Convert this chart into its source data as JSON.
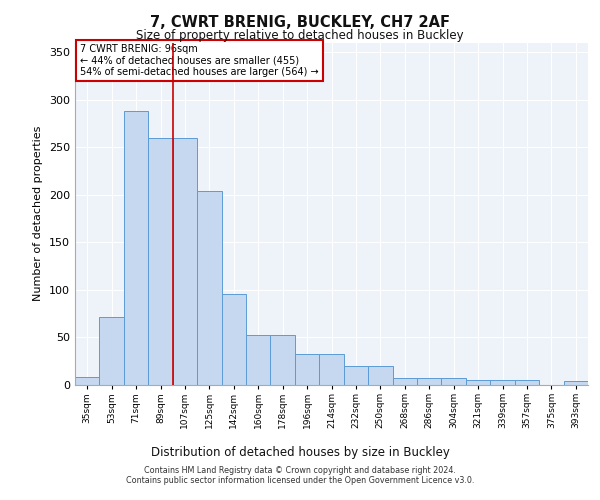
{
  "title": "7, CWRT BRENIG, BUCKLEY, CH7 2AF",
  "subtitle": "Size of property relative to detached houses in Buckley",
  "xlabel": "Distribution of detached houses by size in Buckley",
  "ylabel": "Number of detached properties",
  "categories": [
    "35sqm",
    "53sqm",
    "71sqm",
    "89sqm",
    "107sqm",
    "125sqm",
    "142sqm",
    "160sqm",
    "178sqm",
    "196sqm",
    "214sqm",
    "232sqm",
    "250sqm",
    "268sqm",
    "286sqm",
    "304sqm",
    "321sqm",
    "339sqm",
    "357sqm",
    "375sqm",
    "393sqm"
  ],
  "values": [
    8,
    72,
    288,
    260,
    260,
    204,
    96,
    53,
    53,
    33,
    33,
    20,
    20,
    7,
    7,
    7,
    5,
    5,
    5,
    0,
    4
  ],
  "bar_color": "#c5d8f0",
  "bar_edge_color": "#5b9bd5",
  "background_color": "#eef2f9",
  "grid_color": "#ffffff",
  "annotation_box_text": "7 CWRT BRENIG: 96sqm\n← 44% of detached houses are smaller (455)\n54% of semi-detached houses are larger (564) →",
  "annotation_box_color": "#ffffff",
  "annotation_box_edge_color": "#cc0000",
  "red_line_x": 3.5,
  "ylim": [
    0,
    360
  ],
  "yticks": [
    0,
    50,
    100,
    150,
    200,
    250,
    300,
    350
  ],
  "footer_line1": "Contains HM Land Registry data © Crown copyright and database right 2024.",
  "footer_line2": "Contains public sector information licensed under the Open Government Licence v3.0."
}
